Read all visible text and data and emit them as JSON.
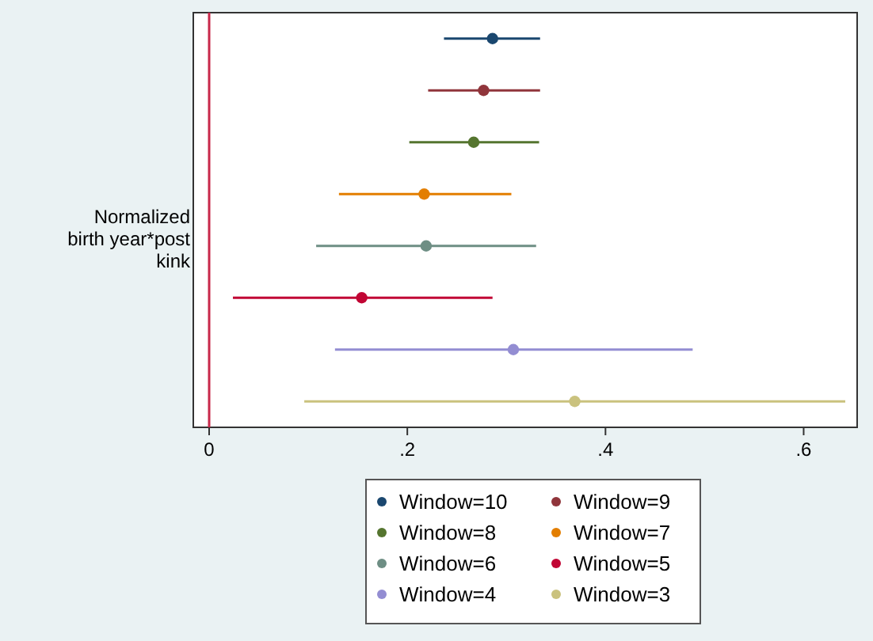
{
  "chart_data": {
    "type": "scatter",
    "orientation": "horizontal",
    "ylabel": "Normalized birth year*post kink",
    "categories": [
      null,
      null,
      null,
      null,
      null,
      null,
      null,
      null
    ],
    "xlim": [
      -0.016,
      0.654
    ],
    "xticks": [
      0,
      {
        "value": 0.2,
        "label": ".2"
      },
      {
        "value": 0.4,
        "label": ".4"
      },
      {
        "value": 0.6,
        "label": ".6"
      }
    ],
    "marker": "circle",
    "grid": false,
    "legend": "bottom",
    "ref_lines": [
      {
        "axis": "x",
        "value": 0,
        "color": "#c8284a"
      }
    ],
    "series": [
      {
        "name": "Window=10",
        "color": "#1a476f",
        "values": [
          0.286,
          null,
          null,
          null,
          null,
          null,
          null,
          null
        ],
        "errors": [
          [
            0.237,
            0.334
          ],
          null,
          null,
          null,
          null,
          null,
          null,
          null
        ]
      },
      {
        "name": "Window=9",
        "color": "#90353b",
        "values": [
          null,
          0.277,
          null,
          null,
          null,
          null,
          null,
          null
        ],
        "errors": [
          null,
          [
            0.221,
            0.334
          ],
          null,
          null,
          null,
          null,
          null,
          null
        ]
      },
      {
        "name": "Window=8",
        "color": "#55752f",
        "values": [
          null,
          null,
          0.267,
          null,
          null,
          null,
          null,
          null
        ],
        "errors": [
          null,
          null,
          [
            0.202,
            0.333
          ],
          null,
          null,
          null,
          null,
          null
        ]
      },
      {
        "name": "Window=7",
        "color": "#e37e00",
        "values": [
          null,
          null,
          null,
          0.217,
          null,
          null,
          null,
          null
        ],
        "errors": [
          null,
          null,
          null,
          [
            0.131,
            0.305
          ],
          null,
          null,
          null,
          null
        ]
      },
      {
        "name": "Window=6",
        "color": "#6e8e84",
        "values": [
          null,
          null,
          null,
          null,
          0.219,
          null,
          null,
          null
        ],
        "errors": [
          null,
          null,
          null,
          null,
          [
            0.108,
            0.33
          ],
          null,
          null,
          null
        ]
      },
      {
        "name": "Window=5",
        "color": "#c10534",
        "values": [
          null,
          null,
          null,
          null,
          null,
          0.154,
          null,
          null
        ],
        "errors": [
          null,
          null,
          null,
          null,
          null,
          [
            0.024,
            0.286
          ],
          null,
          null
        ]
      },
      {
        "name": "Window=4",
        "color": "#938dd2",
        "values": [
          null,
          null,
          null,
          null,
          null,
          null,
          0.307,
          null
        ],
        "errors": [
          null,
          null,
          null,
          null,
          null,
          null,
          [
            0.127,
            0.488
          ],
          null
        ]
      },
      {
        "name": "Window=3",
        "color": "#cac27e",
        "values": [
          null,
          null,
          null,
          null,
          null,
          null,
          null,
          0.369
        ],
        "errors": [
          null,
          null,
          null,
          null,
          null,
          null,
          null,
          [
            0.096,
            0.642
          ]
        ]
      }
    ]
  }
}
